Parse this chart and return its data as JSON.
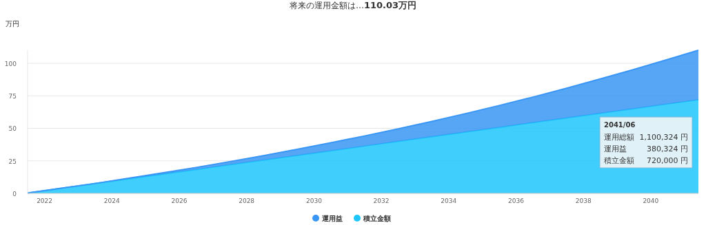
{
  "chart_data": {
    "type": "area",
    "stacked": true,
    "title": "将来の運用金額は…",
    "subtitle": "110.03万円",
    "ylabel": "万円",
    "x": [
      "2021-07",
      "2022-07",
      "2023-07",
      "2024-07",
      "2025-07",
      "2026-07",
      "2027-07",
      "2028-07",
      "2029-07",
      "2030-07",
      "2031-07",
      "2032-07",
      "2033-07",
      "2034-07",
      "2035-07",
      "2036-07",
      "2037-07",
      "2038-07",
      "2039-07",
      "2040-07",
      "2041-06"
    ],
    "series": [
      {
        "name": "積立金額",
        "color": "#1ec6fb",
        "values": [
          0.3,
          3.9,
          7.5,
          11.1,
          14.7,
          18.3,
          21.9,
          25.5,
          29.1,
          32.7,
          36.3,
          39.9,
          43.5,
          47.1,
          50.7,
          54.3,
          57.9,
          61.5,
          65.1,
          68.7,
          72
        ]
      },
      {
        "name": "運用益",
        "color": "#3a96f5",
        "values": [
          0,
          0.1,
          0.1,
          0.5,
          1.0,
          1.6,
          2.5,
          3.5,
          4.7,
          6.2,
          7.8,
          9.7,
          11.8,
          14.2,
          16.8,
          19.7,
          22.9,
          26.4,
          30.1,
          34.2,
          38.0
        ]
      }
    ],
    "xlim": [
      "2021-07",
      "2041-06"
    ],
    "xticks": [
      "2022",
      "2024",
      "2026",
      "2028",
      "2030",
      "2032",
      "2034",
      "2036",
      "2038",
      "2040"
    ],
    "ylim": [
      0,
      110.03
    ],
    "yticks": [
      0,
      25,
      50,
      75,
      100
    ],
    "grid": "y",
    "legend": "bottom",
    "annotations": [
      "2041/06",
      "運用総額 1,100,324 円",
      "運用益 380,324 円",
      "積立金額 720,000 円"
    ]
  }
}
